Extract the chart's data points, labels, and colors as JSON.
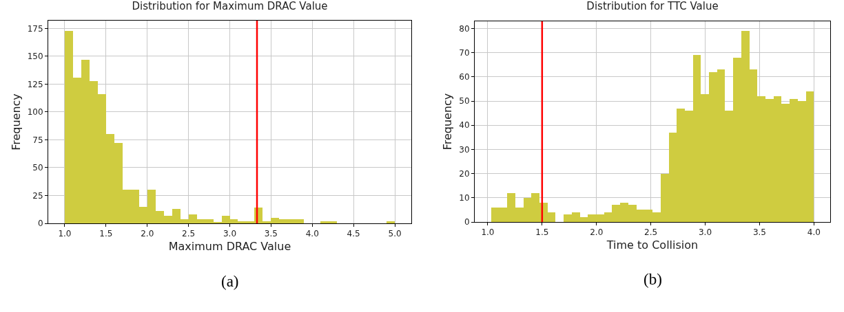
{
  "chart_data": [
    {
      "type": "histogram",
      "title": "Distribution for Maximum DRAC Value",
      "xlabel": "Maximum DRAC Value",
      "ylabel": "Frequency",
      "color": "#cfcc40",
      "bins": [
        1.0,
        1.1,
        1.2,
        1.3,
        1.4,
        1.5,
        1.6,
        1.7,
        1.8,
        1.9,
        2.0,
        2.1,
        2.2,
        2.3,
        2.4,
        2.5,
        2.6,
        2.7,
        2.8,
        2.9,
        3.0,
        3.1,
        3.2,
        3.3,
        3.4,
        3.5,
        3.6,
        3.7,
        3.8,
        3.9,
        4.0,
        4.1,
        4.2,
        4.3,
        4.4,
        4.5,
        4.6,
        4.7,
        4.8,
        4.9,
        5.0
      ],
      "values": [
        173,
        131,
        147,
        128,
        116,
        80,
        72,
        30,
        30,
        15,
        30,
        11,
        7,
        13,
        4,
        8,
        4,
        4,
        1,
        7,
        4,
        2,
        2,
        14,
        2,
        5,
        4,
        4,
        4,
        0,
        0,
        2,
        2,
        0,
        0,
        0,
        0,
        0,
        0,
        2
      ],
      "xlim": [
        0.8,
        5.2
      ],
      "xticks": [
        {
          "value": 1,
          "label": "1.0"
        },
        {
          "value": 1.5,
          "label": "1.5"
        },
        {
          "value": 2,
          "label": "2.0"
        },
        {
          "value": 2.5,
          "label": "2.5"
        },
        {
          "value": 3,
          "label": "3.0"
        },
        {
          "value": 3.5,
          "label": "3.5"
        },
        {
          "value": 4,
          "label": "4.0"
        },
        {
          "value": 4.5,
          "label": "4.5"
        },
        {
          "value": 5,
          "label": "5.0"
        }
      ],
      "ylim": [
        0,
        182
      ],
      "yticks": [
        0,
        25,
        50,
        75,
        100,
        125,
        150,
        175
      ],
      "grid": true,
      "ref_lines": [
        {
          "axis": "x",
          "value": 3.33,
          "color": "#ff0000"
        }
      ],
      "annotations": [
        "(a)"
      ]
    },
    {
      "type": "histogram",
      "title": "Distribution for TTC Value",
      "xlabel": "Time to Collision",
      "ylabel": "Frequency",
      "color": "#cfcc40",
      "bins": [
        1.03,
        1.104,
        1.179,
        1.253,
        1.327,
        1.401,
        1.476,
        1.55,
        1.624,
        1.698,
        1.773,
        1.847,
        1.921,
        1.995,
        2.07,
        2.144,
        2.218,
        2.292,
        2.367,
        2.441,
        2.515,
        2.589,
        2.664,
        2.738,
        2.812,
        2.886,
        2.961,
        3.035,
        3.109,
        3.183,
        3.258,
        3.332,
        3.406,
        3.48,
        3.555,
        3.629,
        3.703,
        3.777,
        3.852,
        3.926,
        4.0
      ],
      "values": [
        6,
        6,
        12,
        6,
        10,
        12,
        8,
        4,
        0,
        3,
        4,
        2,
        3,
        3,
        4,
        7,
        8,
        7,
        5,
        5,
        4,
        20,
        37,
        47,
        46,
        69,
        53,
        62,
        63,
        46,
        68,
        79,
        63,
        52,
        51,
        52,
        49,
        51,
        50,
        54
      ],
      "xlim": [
        0.88,
        4.15
      ],
      "xticks": [
        {
          "value": 1,
          "label": "1.0"
        },
        {
          "value": 1.5,
          "label": "1.5"
        },
        {
          "value": 2,
          "label": "2.0"
        },
        {
          "value": 2.5,
          "label": "2.5"
        },
        {
          "value": 3,
          "label": "3.0"
        },
        {
          "value": 3.5,
          "label": "3.5"
        },
        {
          "value": 4,
          "label": "4.0"
        }
      ],
      "ylim": [
        0,
        83
      ],
      "yticks": [
        0,
        10,
        20,
        30,
        40,
        50,
        60,
        70,
        80
      ],
      "grid": true,
      "ref_lines": [
        {
          "axis": "x",
          "value": 1.5,
          "color": "#ff0000"
        }
      ],
      "annotations": [
        "(b)"
      ]
    }
  ]
}
